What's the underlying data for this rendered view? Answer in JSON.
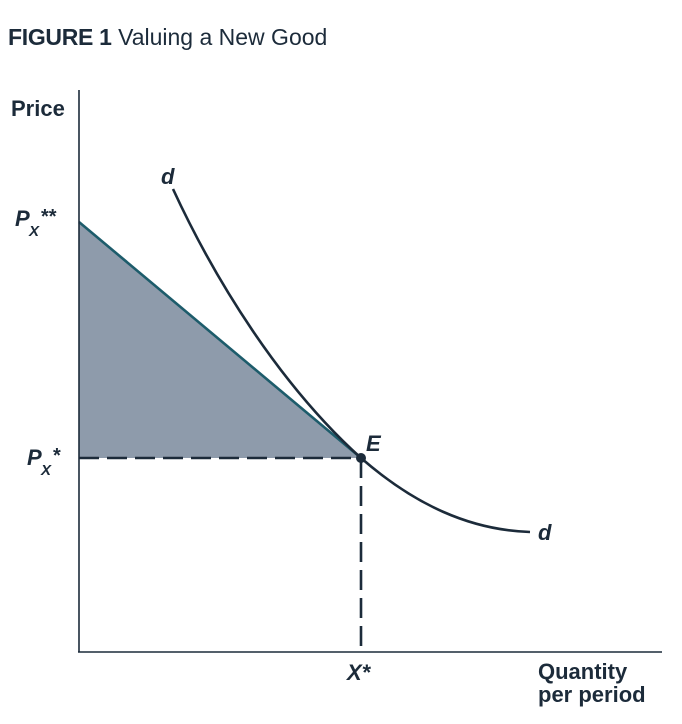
{
  "figure": {
    "number_label": "FIGURE 1",
    "caption": "Valuing a New Good"
  },
  "axes": {
    "y_label": "Price",
    "x_label_line1": "Quantity",
    "x_label_line2": "per period"
  },
  "labels": {
    "price_high_main": "P",
    "price_high_sub": "X",
    "price_high_sup": "**",
    "price_star_main": "P",
    "price_star_sub": "X",
    "price_star_sup": "*",
    "quantity_star": "X*",
    "point_e": "E",
    "curve_d_top": "d",
    "curve_d_bottom": "d"
  },
  "colors": {
    "ink": "#1c2b3a",
    "shaded_area": "#8e9bab",
    "linear_demand": "#1d5c6b"
  }
}
